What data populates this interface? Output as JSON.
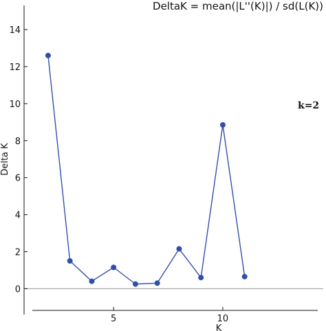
{
  "chart_data": {
    "type": "line",
    "title": "DeltaK = mean(|L''(K)|) / sd(L(K))",
    "xlabel": "K",
    "ylabel": "Delta K",
    "annotation": "k=2",
    "x": [
      2,
      3,
      4,
      5,
      6,
      7,
      8,
      9,
      10,
      11
    ],
    "series": [
      {
        "values": [
          12.6,
          1.5,
          0.4,
          1.15,
          0.25,
          0.3,
          2.15,
          0.6,
          8.85,
          0.65
        ],
        "color": "#3050a8"
      }
    ],
    "xlim": [
      0.9,
      14.6
    ],
    "ylim": [
      -1.1,
      15.6
    ],
    "xticks": [
      5,
      10
    ],
    "yticks": [
      0,
      2,
      4,
      6,
      8,
      10,
      12,
      14
    ],
    "zero_line": true,
    "grid": false,
    "axis_color": "#111111",
    "zero_line_color": "#999999"
  }
}
